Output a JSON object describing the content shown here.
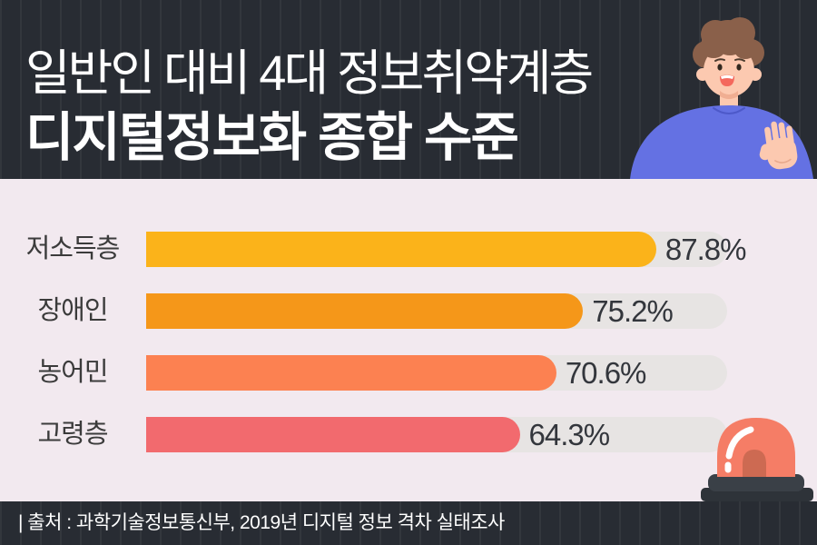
{
  "header": {
    "title_line1": "일반인 대비 4대 정보취약계층",
    "title_line2": "디지털정보화 종합 수준"
  },
  "chart_data": {
    "type": "bar",
    "orientation": "horizontal",
    "title": "일반인 대비 4대 정보취약계층 디지털정보화 종합 수준",
    "categories": [
      "저소득층",
      "장애인",
      "농어민",
      "고령층"
    ],
    "values": [
      87.8,
      75.2,
      70.6,
      64.3
    ],
    "value_labels": [
      "87.8%",
      "75.2%",
      "70.6%",
      "64.3%"
    ],
    "unit": "%",
    "xlim": [
      0,
      100
    ],
    "grid": false,
    "legend": false,
    "bar_colors": [
      "#FBB31A",
      "#F59719",
      "#FC8151",
      "#F26A6E"
    ],
    "track_color": "#E7E4E3",
    "label_color": "#3B3B3B",
    "value_label_color": "#33363C"
  },
  "footer": {
    "source_text": "| 출처 : 과학기술정보통신부, 2019년 디지털 정보 격차 실태조사"
  },
  "illustrations": {
    "person": "waving-person",
    "siren": "red-emergency-siren"
  },
  "colors": {
    "header_background": "#282C33",
    "header_stripe": "#3A3F45",
    "chart_background": "#F2E9EF",
    "title_text": "#FFFFFF",
    "footer_text": "#FFFFFF",
    "person_sweater": "#6471E3",
    "person_skin": "#FCC9B0",
    "person_hair": "#8A604A",
    "siren_dome": "#F57D66",
    "siren_inner": "#CD6A52",
    "siren_base": "#3A4047"
  }
}
